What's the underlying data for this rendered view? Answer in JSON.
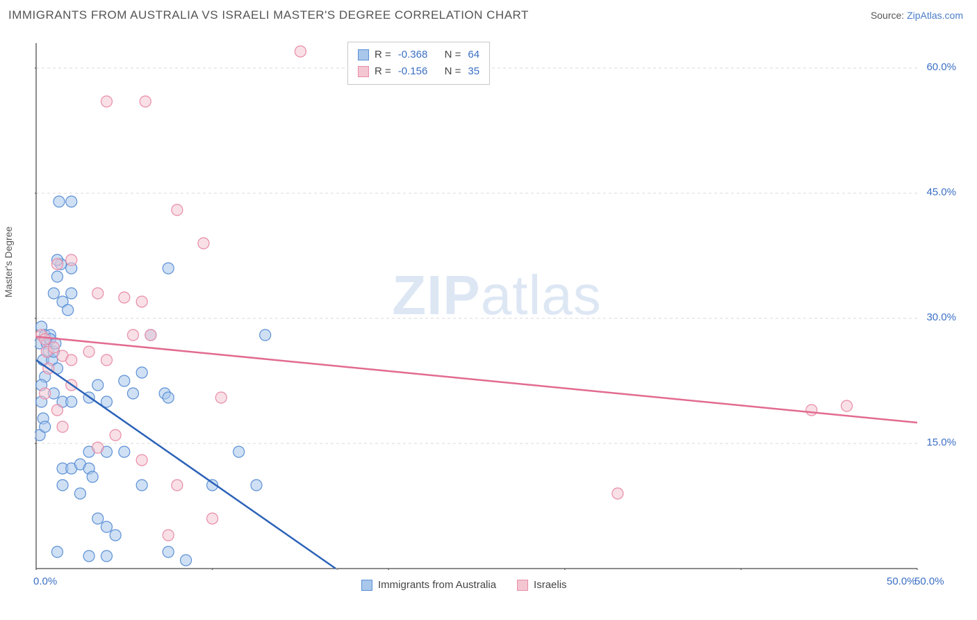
{
  "header": {
    "title": "IMMIGRANTS FROM AUSTRALIA VS ISRAELI MASTER'S DEGREE CORRELATION CHART",
    "source_label": "Source:",
    "source_name": "ZipAtlas.com"
  },
  "watermark": {
    "zip": "ZIP",
    "atlas": "atlas"
  },
  "chart": {
    "type": "scatter",
    "ylabel": "Master's Degree",
    "background_color": "#ffffff",
    "grid_color": "#d8d8d8",
    "axis_color": "#666666",
    "tick_label_color": "#3b6fc4",
    "xlim": [
      0,
      50
    ],
    "ylim": [
      0,
      63
    ],
    "x_ticks": [
      0,
      10,
      20,
      30,
      40,
      50
    ],
    "x_tick_labels": [
      "0.0%",
      "",
      "",
      "",
      "",
      "50.0%"
    ],
    "y_ticks": [
      15,
      30,
      45,
      60
    ],
    "y_tick_labels": [
      "15.0%",
      "30.0%",
      "45.0%",
      "60.0%"
    ],
    "marker_radius": 8,
    "marker_opacity": 0.55,
    "series": [
      {
        "name": "Immigrants from Australia",
        "color_fill": "#a8c7eb",
        "color_stroke": "#5b8fd6",
        "R": "-0.368",
        "N": "64",
        "trend": {
          "x1": 0,
          "y1": 25,
          "x2": 17,
          "y2": 0,
          "color": "#2b62b8",
          "width": 2.5,
          "extend_dash_to_x": 19
        },
        "points": [
          [
            0.2,
            27
          ],
          [
            0.3,
            29
          ],
          [
            0.4,
            25
          ],
          [
            0.5,
            28
          ],
          [
            0.5,
            23
          ],
          [
            0.6,
            27
          ],
          [
            0.7,
            26
          ],
          [
            0.8,
            28
          ],
          [
            0.8,
            27.5
          ],
          [
            0.9,
            25
          ],
          [
            1.0,
            26
          ],
          [
            1.1,
            27
          ],
          [
            1.2,
            24
          ],
          [
            1.3,
            44
          ],
          [
            2.0,
            44
          ],
          [
            1.4,
            36.5
          ],
          [
            1.2,
            35
          ],
          [
            2.0,
            36
          ],
          [
            1.0,
            33
          ],
          [
            1.5,
            32
          ],
          [
            0.3,
            20
          ],
          [
            0.4,
            18
          ],
          [
            0.2,
            16
          ],
          [
            0.5,
            17
          ],
          [
            0.3,
            22
          ],
          [
            1.0,
            21
          ],
          [
            1.5,
            20
          ],
          [
            2.0,
            20
          ],
          [
            3.0,
            20.5
          ],
          [
            3.5,
            22
          ],
          [
            4.0,
            20
          ],
          [
            5.0,
            22.5
          ],
          [
            5.5,
            21
          ],
          [
            6.0,
            23.5
          ],
          [
            7.3,
            21
          ],
          [
            7.5,
            20.5
          ],
          [
            1.5,
            12
          ],
          [
            2.0,
            12
          ],
          [
            2.5,
            12.5
          ],
          [
            3.0,
            12
          ],
          [
            3.2,
            11
          ],
          [
            3.0,
            14
          ],
          [
            4.0,
            14
          ],
          [
            5.0,
            14
          ],
          [
            6.0,
            10
          ],
          [
            1.5,
            10
          ],
          [
            2.5,
            9
          ],
          [
            3.5,
            6
          ],
          [
            4.0,
            5
          ],
          [
            1.2,
            2
          ],
          [
            3.0,
            1.5
          ],
          [
            4.0,
            1.5
          ],
          [
            4.5,
            4
          ],
          [
            7.5,
            2
          ],
          [
            8.5,
            1
          ],
          [
            10.0,
            10
          ],
          [
            11.5,
            14
          ],
          [
            12.5,
            10
          ],
          [
            13.0,
            28
          ],
          [
            6.5,
            28
          ],
          [
            7.5,
            36
          ],
          [
            1.2,
            37
          ],
          [
            2.0,
            33
          ],
          [
            1.8,
            31
          ]
        ]
      },
      {
        "name": "Israelis",
        "color_fill": "#f3c6d1",
        "color_stroke": "#e98ba6",
        "R": "-0.156",
        "N": "35",
        "trend": {
          "x1": 0,
          "y1": 27.8,
          "x2": 50,
          "y2": 17.5,
          "color": "#e26b8f",
          "width": 2.5
        },
        "points": [
          [
            0.3,
            28
          ],
          [
            0.5,
            27.5
          ],
          [
            0.6,
            26
          ],
          [
            0.7,
            24
          ],
          [
            1.0,
            26.5
          ],
          [
            1.5,
            25.5
          ],
          [
            2.0,
            25
          ],
          [
            3.0,
            26
          ],
          [
            4.0,
            25
          ],
          [
            5.5,
            28
          ],
          [
            6.5,
            28
          ],
          [
            1.2,
            36.5
          ],
          [
            2.0,
            37
          ],
          [
            3.5,
            33
          ],
          [
            5.0,
            32.5
          ],
          [
            6.0,
            32
          ],
          [
            8.0,
            43
          ],
          [
            9.5,
            39
          ],
          [
            4.0,
            56
          ],
          [
            6.2,
            56
          ],
          [
            15.0,
            62
          ],
          [
            0.5,
            21
          ],
          [
            1.2,
            19
          ],
          [
            1.5,
            17
          ],
          [
            2.0,
            22
          ],
          [
            3.5,
            14.5
          ],
          [
            4.5,
            16
          ],
          [
            6.0,
            13
          ],
          [
            8.0,
            10
          ],
          [
            7.5,
            4
          ],
          [
            10.0,
            6
          ],
          [
            10.5,
            20.5
          ],
          [
            33.0,
            9
          ],
          [
            44.0,
            19
          ],
          [
            46.0,
            19.5
          ]
        ]
      }
    ]
  },
  "legend_bottom": {
    "items": [
      {
        "label": "Immigrants from Australia",
        "fill": "#a8c7eb",
        "stroke": "#5b8fd6"
      },
      {
        "label": "Israelis",
        "fill": "#f3c6d1",
        "stroke": "#e98ba6"
      }
    ]
  }
}
